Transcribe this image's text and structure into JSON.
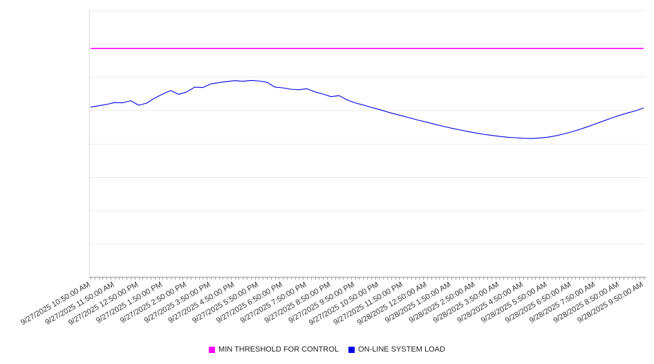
{
  "legend": {
    "items": [
      {
        "label": "MIN THRESHOLD FOR CONTROL",
        "color": "#ff00ff"
      },
      {
        "label": "ON-LINE SYSTEM LOAD",
        "color": "#0000e6"
      }
    ]
  },
  "chart_data": {
    "type": "line",
    "title": "",
    "xlabel": "",
    "ylabel": "",
    "ylim": [
      0,
      100
    ],
    "grid": true,
    "grid_divisions": 8,
    "legend_position": "bottom",
    "x_minor_ticks_per_hour": 6,
    "x_labels": [
      "9/27/2025 10:50:00 AM",
      "9/27/2025 11:50:00 AM",
      "9/27/2025 12:50:00 PM",
      "9/27/2025 1:50:00 PM",
      "9/27/2025 2:50:00 PM",
      "9/27/2025 3:50:00 PM",
      "9/27/2025 4:50:00 PM",
      "9/27/2025 5:50:00 PM",
      "9/27/2025 6:50:00 PM",
      "9/27/2025 7:50:00 PM",
      "9/27/2025 8:50:00 PM",
      "9/27/2025 9:50:00 PM",
      "9/27/2025 10:50:00 PM",
      "9/27/2025 11:50:00 PM",
      "9/28/2025 12:50:00 AM",
      "9/28/2025 1:50:00 AM",
      "9/28/2025 2:50:00 AM",
      "9/28/2025 3:50:00 AM",
      "9/28/2025 4:50:00 AM",
      "9/28/2025 5:50:00 AM",
      "9/28/2025 6:50:00 AM",
      "9/28/2025 7:50:00 AM",
      "9/28/2025 8:50:00 AM",
      "9/28/2025 9:50:00 AM"
    ],
    "series": [
      {
        "name": "MIN THRESHOLD FOR CONTROL",
        "type": "constant",
        "value": 85.7,
        "color": "#ff00ff"
      },
      {
        "name": "ON-LINE SYSTEM LOAD",
        "type": "line",
        "dt_hours": 0.3333333,
        "color": "#0000e6",
        "values": [
          63.7,
          64.2,
          64.7,
          65.4,
          65.3,
          66.1,
          64.4,
          65.2,
          67.1,
          68.6,
          69.9,
          68.5,
          69.4,
          71.2,
          71.0,
          72.4,
          72.9,
          73.3,
          73.6,
          73.4,
          73.7,
          73.5,
          73.0,
          71.2,
          70.9,
          70.4,
          70.2,
          70.6,
          69.4,
          68.6,
          67.6,
          68.0,
          66.4,
          65.3,
          64.5,
          63.6,
          62.8,
          61.9,
          61.1,
          60.3,
          59.5,
          58.7,
          58.0,
          57.2,
          56.5,
          55.8,
          55.2,
          54.6,
          54.0,
          53.5,
          53.1,
          52.7,
          52.4,
          52.2,
          52.0,
          51.9,
          52.1,
          52.4,
          52.9,
          53.6,
          54.4,
          55.3,
          56.3,
          57.4,
          58.5,
          59.6,
          60.6,
          61.5,
          62.3,
          63.4
        ]
      }
    ]
  }
}
